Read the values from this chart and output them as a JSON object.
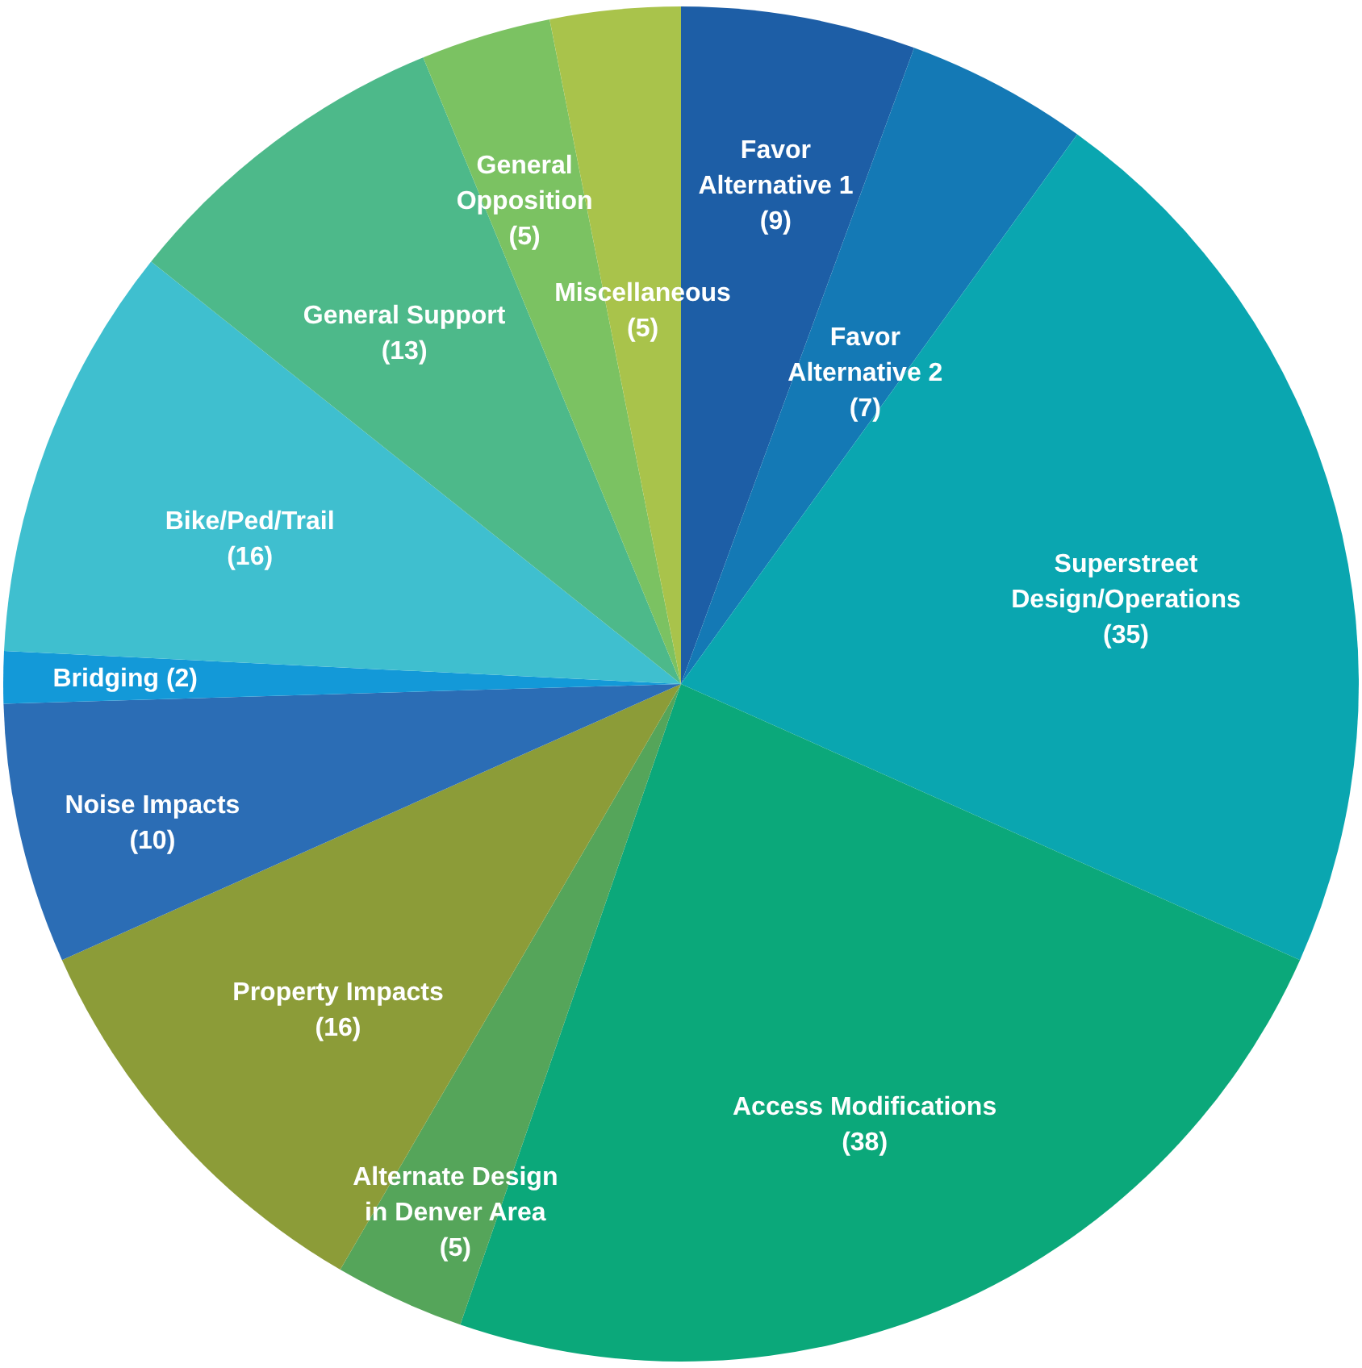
{
  "chart_data": {
    "type": "pie",
    "categories": [
      "Favor Alternative 1",
      "Favor Alternative 2",
      "Superstreet Design/Operations",
      "Access Modifications",
      "Alternate Design in Denver Area",
      "Property Impacts",
      "Noise Impacts",
      "Bridging",
      "Bike/Ped/Trail",
      "General Support",
      "General Opposition",
      "Miscellaneous"
    ],
    "values": [
      9,
      7,
      35,
      38,
      5,
      16,
      10,
      2,
      16,
      13,
      5,
      5
    ],
    "value_labels": [
      "(9)",
      "(7)",
      "(35)",
      "(38)",
      "(5)",
      "(16)",
      "(10)",
      "(2)",
      "(16)",
      "(13)",
      "(5)",
      "(5)"
    ],
    "colors": [
      "#1d5ea6",
      "#1479b5",
      "#0aa6b0",
      "#0ba87a",
      "#55a55a",
      "#8c9c38",
      "#2b6db5",
      "#1399d8",
      "#3fbfcf",
      "#4db98a",
      "#7bc262",
      "#a9c34b"
    ]
  }
}
